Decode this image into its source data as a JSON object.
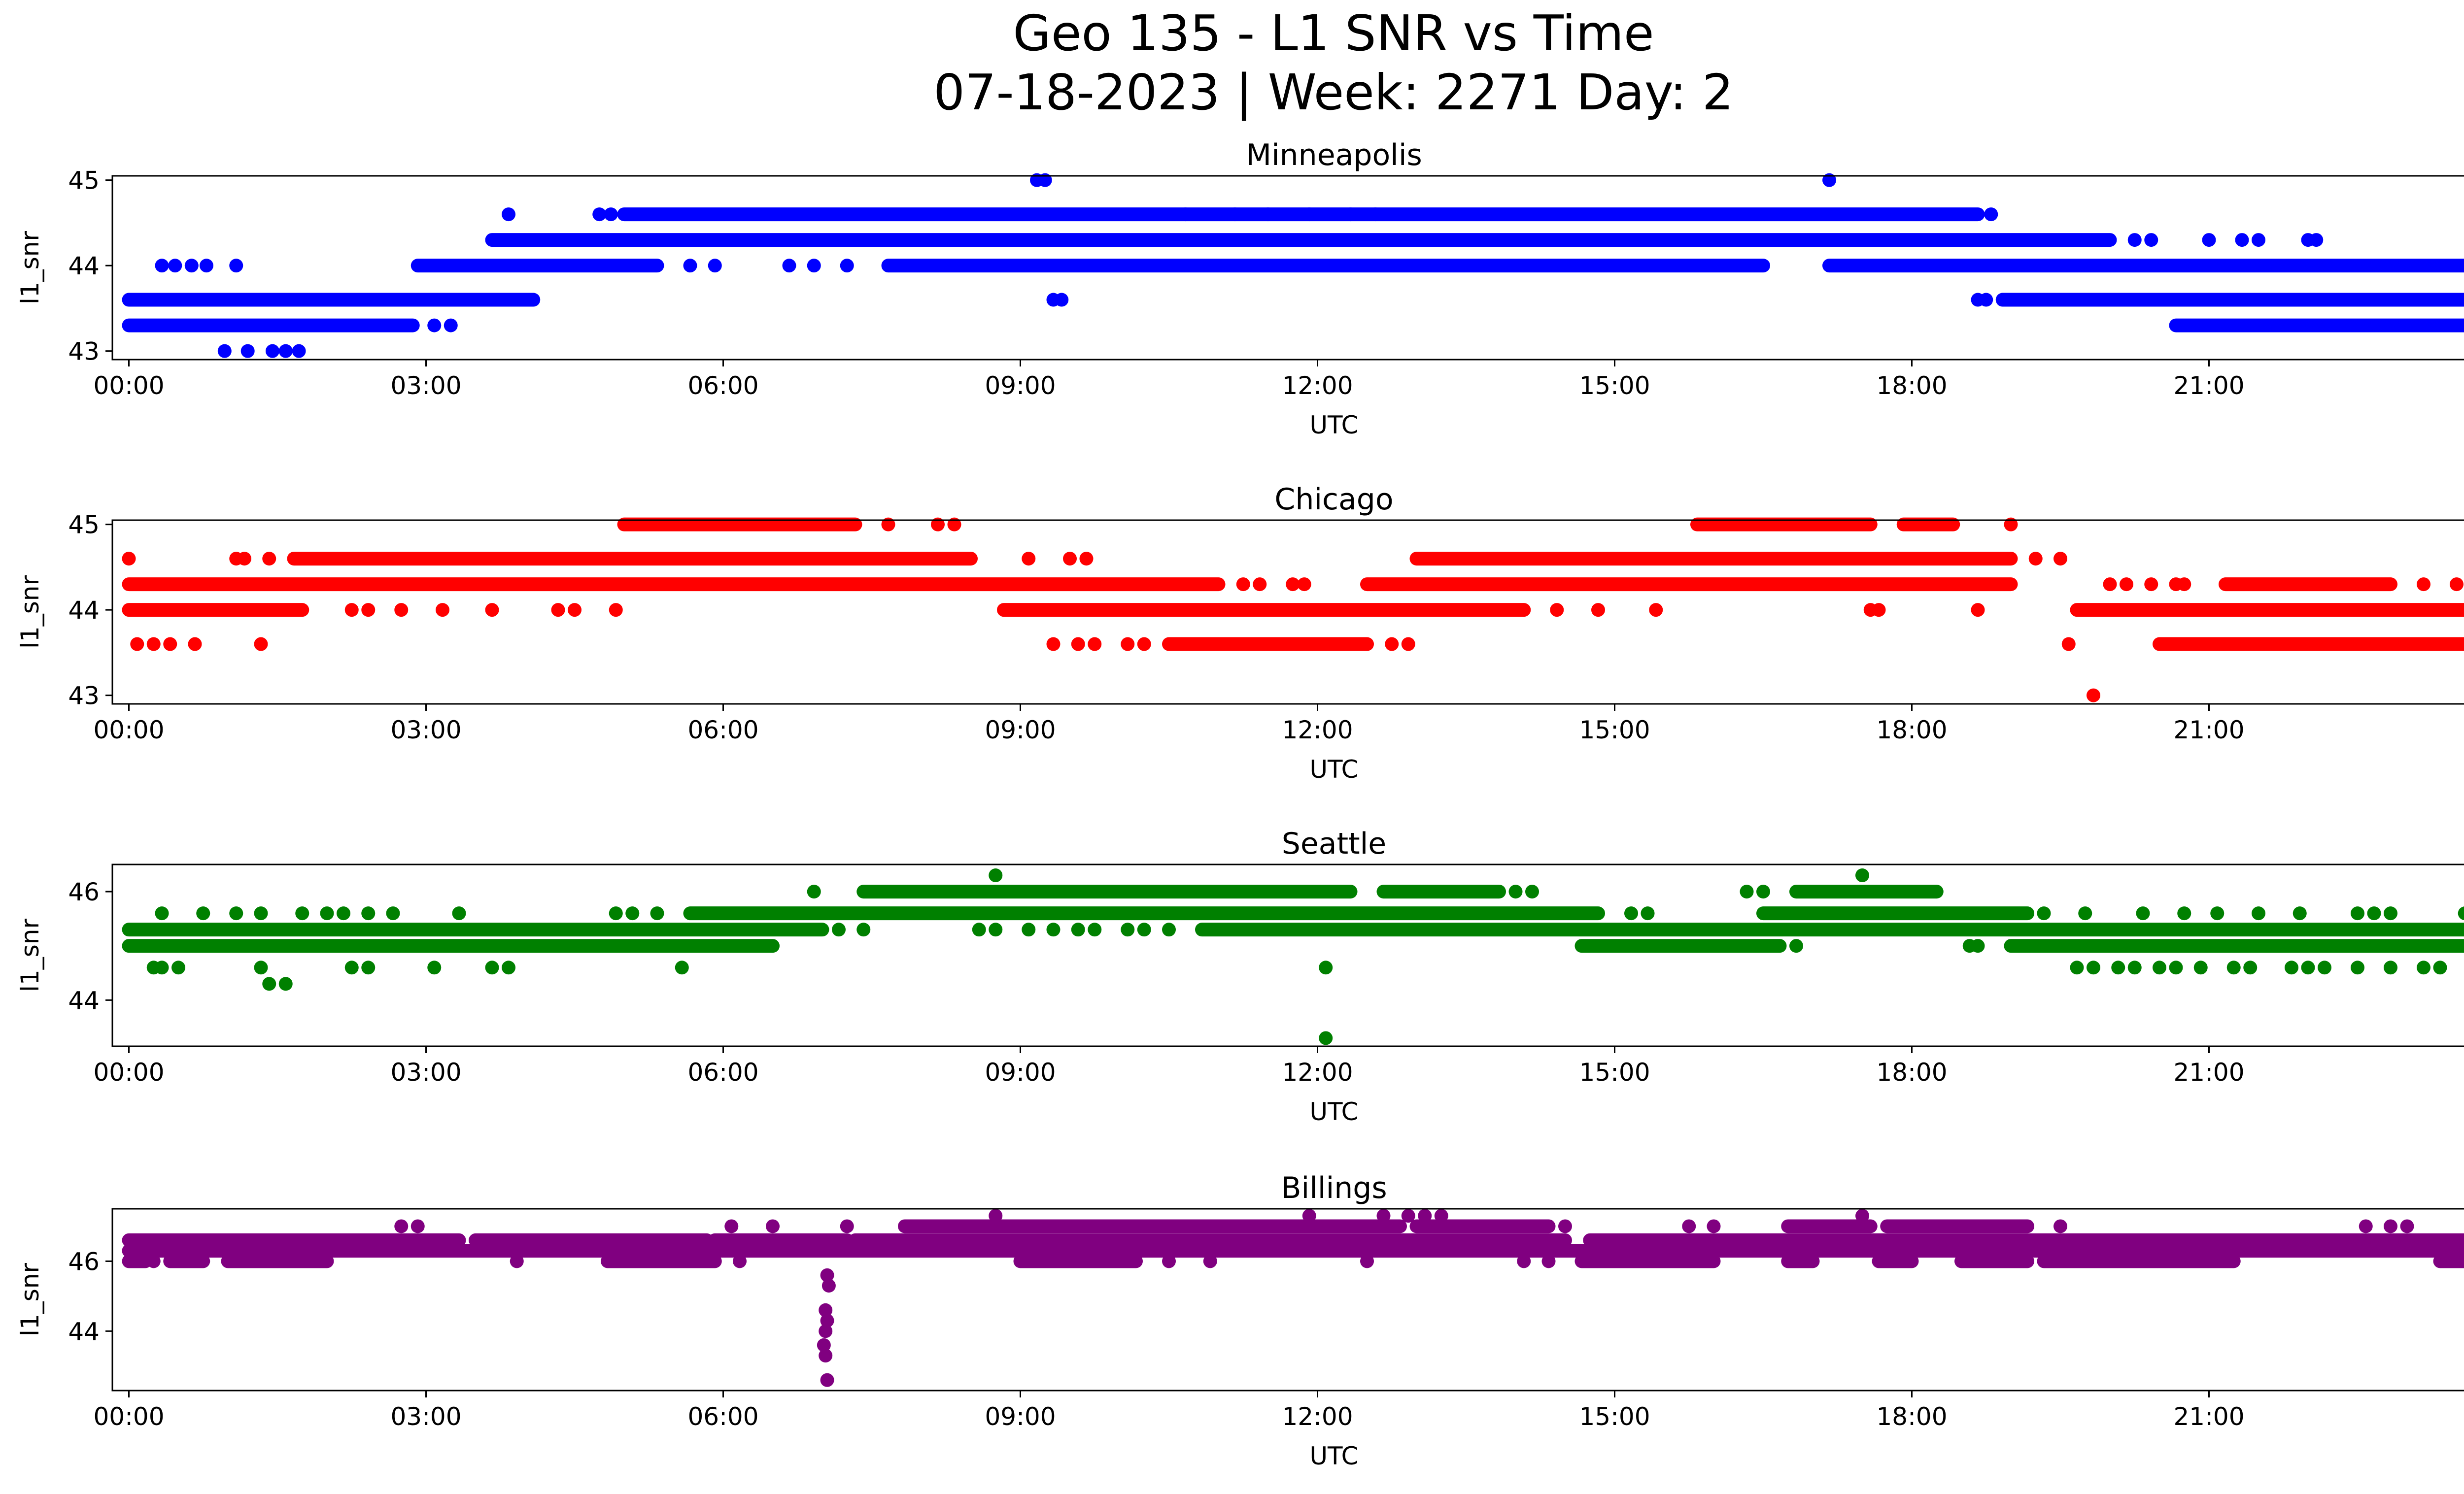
{
  "figure": {
    "title_line1": "Geo 135 - L1 SNR vs Time",
    "title_line2": "07-18-2023 | Week: 2271 Day: 2"
  },
  "chart_data": [
    {
      "type": "scatter",
      "title": "Minneapolis",
      "xlabel": "UTC",
      "ylabel": "l1_snr",
      "color": "#0000ff",
      "xlim": [
        "23:50",
        "24:30"
      ],
      "ylim": [
        42.9,
        45.05
      ],
      "xticks": [
        "00:00",
        "03:00",
        "06:00",
        "09:00",
        "12:00",
        "15:00",
        "18:00",
        "21:00",
        "00:00"
      ],
      "yticks": [
        43,
        44,
        45
      ],
      "levels": [
        {
          "y": 43.0,
          "ranges": [],
          "points": [
            "00:58",
            "01:12",
            "01:27",
            "01:35",
            "01:43"
          ]
        },
        {
          "y": 43.3,
          "ranges": [
            [
              "00:00",
              "02:52"
            ],
            [
              "20:40",
              "24:00"
            ]
          ],
          "points": [
            "03:05",
            "03:15"
          ]
        },
        {
          "y": 43.6,
          "ranges": [
            [
              "00:00",
              "04:05"
            ],
            [
              "18:55",
              "24:00"
            ]
          ],
          "points": [
            "09:20",
            "09:25",
            "18:40",
            "18:45"
          ]
        },
        {
          "y": 44.0,
          "ranges": [
            [
              "02:55",
              "05:20"
            ],
            [
              "07:40",
              "16:30"
            ],
            [
              "17:10",
              "24:00"
            ]
          ],
          "points": [
            "00:20",
            "00:28",
            "00:38",
            "00:47",
            "01:05",
            "05:40",
            "05:55",
            "06:40",
            "06:55",
            "07:15"
          ]
        },
        {
          "y": 44.3,
          "ranges": [
            [
              "03:40",
              "20:00"
            ]
          ],
          "points": [
            "20:15",
            "20:25",
            "21:00",
            "21:20",
            "21:30",
            "22:00",
            "22:05"
          ]
        },
        {
          "y": 44.6,
          "ranges": [
            [
              "05:00",
              "18:40"
            ]
          ],
          "points": [
            "03:50",
            "04:45",
            "04:52",
            "10:40",
            "11:10",
            "11:30",
            "11:55",
            "12:20",
            "12:35",
            "18:48"
          ]
        },
        {
          "y": 45.0,
          "ranges": [],
          "points": [
            "09:10",
            "09:15",
            "17:10"
          ]
        }
      ]
    },
    {
      "type": "scatter",
      "title": "Chicago",
      "xlabel": "UTC",
      "ylabel": "l1_snr",
      "color": "#ff0000",
      "xlim": [
        "23:50",
        "24:30"
      ],
      "ylim": [
        42.9,
        45.05
      ],
      "xticks": [
        "00:00",
        "03:00",
        "06:00",
        "09:00",
        "12:00",
        "15:00",
        "18:00",
        "21:00",
        "00:00"
      ],
      "yticks": [
        43,
        44,
        45
      ],
      "levels": [
        {
          "y": 43.0,
          "ranges": [],
          "points": [
            "19:50"
          ]
        },
        {
          "y": 43.6,
          "ranges": [
            [
              "10:30",
              "12:30"
            ],
            [
              "20:30",
              "24:00"
            ]
          ],
          "points": [
            "00:05",
            "00:15",
            "00:25",
            "00:40",
            "01:20",
            "09:20",
            "09:35",
            "09:45",
            "10:05",
            "10:15",
            "12:45",
            "12:55",
            "19:35"
          ]
        },
        {
          "y": 44.0,
          "ranges": [
            [
              "00:00",
              "01:45"
            ],
            [
              "08:50",
              "14:05"
            ],
            [
              "19:40",
              "24:00"
            ]
          ],
          "points": [
            "02:15",
            "02:25",
            "02:45",
            "03:10",
            "03:40",
            "04:20",
            "04:30",
            "04:55",
            "14:25",
            "14:50",
            "15:25",
            "17:35",
            "17:40",
            "18:40"
          ]
        },
        {
          "y": 44.3,
          "ranges": [
            [
              "00:00",
              "11:00"
            ],
            [
              "12:30",
              "19:00"
            ],
            [
              "21:10",
              "22:50"
            ]
          ],
          "points": [
            "11:15",
            "11:25",
            "11:45",
            "11:52",
            "20:00",
            "20:10",
            "20:25",
            "20:40",
            "20:45",
            "23:10",
            "23:30"
          ]
        },
        {
          "y": 44.6,
          "ranges": [
            [
              "01:40",
              "08:30"
            ],
            [
              "13:00",
              "19:00"
            ]
          ],
          "points": [
            "00:00",
            "01:05",
            "01:10",
            "01:25",
            "09:05",
            "09:30",
            "09:40",
            "19:15",
            "19:30"
          ]
        },
        {
          "y": 45.0,
          "ranges": [
            [
              "05:00",
              "07:20"
            ],
            [
              "15:50",
              "17:35"
            ],
            [
              "17:55",
              "18:25"
            ]
          ],
          "points": [
            "07:40",
            "08:10",
            "08:20",
            "19:00"
          ]
        }
      ]
    },
    {
      "type": "scatter",
      "title": "Seattle",
      "xlabel": "UTC",
      "ylabel": "l1_snr",
      "color": "#008000",
      "xlim": [
        "23:50",
        "24:30"
      ],
      "ylim": [
        43.15,
        46.5
      ],
      "xticks": [
        "00:00",
        "03:00",
        "06:00",
        "09:00",
        "12:00",
        "15:00",
        "18:00",
        "21:00",
        "00:00"
      ],
      "yticks": [
        44,
        46
      ],
      "levels": [
        {
          "y": 43.3,
          "ranges": [],
          "points": [
            "12:05"
          ]
        },
        {
          "y": 44.3,
          "ranges": [],
          "points": [
            "01:25",
            "01:35"
          ]
        },
        {
          "y": 44.6,
          "ranges": [],
          "points": [
            "00:15",
            "00:20",
            "00:30",
            "01:20",
            "02:15",
            "02:25",
            "03:05",
            "03:40",
            "03:50",
            "05:35",
            "12:05",
            "19:40",
            "19:50",
            "20:05",
            "20:15",
            "20:30",
            "20:40",
            "20:55",
            "21:15",
            "21:25",
            "21:50",
            "22:00",
            "22:10",
            "22:30",
            "22:50",
            "23:10",
            "23:20",
            "23:40"
          ]
        },
        {
          "y": 45.0,
          "ranges": [
            [
              "00:00",
              "06:30"
            ],
            [
              "14:40",
              "16:40"
            ],
            [
              "19:00",
              "24:00"
            ]
          ],
          "points": [
            "16:50",
            "18:35",
            "18:40"
          ]
        },
        {
          "y": 45.3,
          "ranges": [
            [
              "00:00",
              "07:00"
            ],
            [
              "10:50",
              "24:00"
            ]
          ],
          "points": [
            "07:10",
            "07:25",
            "08:35",
            "08:45",
            "09:05",
            "09:20",
            "09:35",
            "09:45",
            "10:05",
            "10:15",
            "10:30"
          ]
        },
        {
          "y": 45.6,
          "ranges": [
            [
              "05:40",
              "14:50"
            ],
            [
              "16:30",
              "19:10"
            ]
          ],
          "points": [
            "00:20",
            "00:45",
            "01:05",
            "01:20",
            "01:45",
            "02:00",
            "02:10",
            "02:25",
            "02:40",
            "03:20",
            "04:55",
            "05:05",
            "05:20",
            "15:10",
            "15:20",
            "19:20",
            "19:45",
            "20:20",
            "20:45",
            "21:05",
            "21:30",
            "21:55",
            "22:30",
            "22:40",
            "22:50",
            "23:35",
            "23:55"
          ]
        },
        {
          "y": 46.0,
          "ranges": [
            [
              "07:25",
              "12:20"
            ],
            [
              "12:40",
              "13:50"
            ],
            [
              "16:50",
              "18:15"
            ]
          ],
          "points": [
            "06:55",
            "14:00",
            "14:10",
            "16:20",
            "16:30"
          ]
        },
        {
          "y": 46.3,
          "ranges": [],
          "points": [
            "08:45",
            "17:30"
          ]
        }
      ]
    },
    {
      "type": "scatter",
      "title": "Billings",
      "xlabel": "UTC",
      "ylabel": "l1_snr",
      "color": "#800080",
      "xlim": [
        "23:50",
        "24:30"
      ],
      "ylim": [
        42.3,
        47.5
      ],
      "xticks": [
        "00:00",
        "03:00",
        "06:00",
        "09:00",
        "12:00",
        "15:00",
        "18:00",
        "21:00",
        "00:00"
      ],
      "yticks": [
        44,
        46
      ],
      "levels": [
        {
          "y": 42.6,
          "ranges": [],
          "points": [
            "07:03"
          ]
        },
        {
          "y": 43.3,
          "ranges": [],
          "points": [
            "07:02"
          ]
        },
        {
          "y": 43.6,
          "ranges": [],
          "points": [
            "07:01"
          ]
        },
        {
          "y": 44.0,
          "ranges": [],
          "points": [
            "07:02"
          ]
        },
        {
          "y": 44.3,
          "ranges": [],
          "points": [
            "07:03"
          ]
        },
        {
          "y": 44.6,
          "ranges": [],
          "points": [
            "07:02"
          ]
        },
        {
          "y": 45.3,
          "ranges": [],
          "points": [
            "07:04"
          ]
        },
        {
          "y": 45.6,
          "ranges": [],
          "points": [
            "07:03"
          ]
        },
        {
          "y": 46.0,
          "ranges": [
            [
              "00:00",
              "00:10"
            ],
            [
              "00:25",
              "00:45"
            ],
            [
              "01:00",
              "02:00"
            ],
            [
              "04:50",
              "05:55"
            ],
            [
              "09:00",
              "10:10"
            ],
            [
              "14:40",
              "16:00"
            ],
            [
              "16:45",
              "17:00"
            ],
            [
              "17:40",
              "18:00"
            ],
            [
              "18:30",
              "19:10"
            ],
            [
              "19:20",
              "21:15"
            ],
            [
              "23:20",
              "24:00"
            ]
          ],
          "points": [
            "00:15",
            "03:55",
            "06:10",
            "10:30",
            "10:55",
            "12:30",
            "14:05",
            "14:20"
          ]
        },
        {
          "y": 46.3,
          "ranges": [
            [
              "00:00",
              "24:00"
            ]
          ],
          "points": []
        },
        {
          "y": 46.6,
          "ranges": [
            [
              "00:00",
              "03:20"
            ],
            [
              "03:30",
              "05:50"
            ],
            [
              "05:55",
              "07:15"
            ],
            [
              "07:20",
              "14:30"
            ],
            [
              "14:45",
              "24:00"
            ]
          ],
          "points": []
        },
        {
          "y": 47.0,
          "ranges": [
            [
              "07:50",
              "12:50"
            ],
            [
              "13:00",
              "14:20"
            ],
            [
              "16:45",
              "17:35"
            ],
            [
              "17:45",
              "19:10"
            ]
          ],
          "points": [
            "02:45",
            "02:55",
            "06:05",
            "06:30",
            "07:15",
            "14:30",
            "15:45",
            "16:00",
            "19:30",
            "22:35",
            "22:50",
            "23:00"
          ]
        },
        {
          "y": 47.3,
          "ranges": [],
          "points": [
            "08:45",
            "11:55",
            "12:40",
            "12:55",
            "13:05",
            "13:15",
            "17:30"
          ]
        }
      ]
    }
  ]
}
